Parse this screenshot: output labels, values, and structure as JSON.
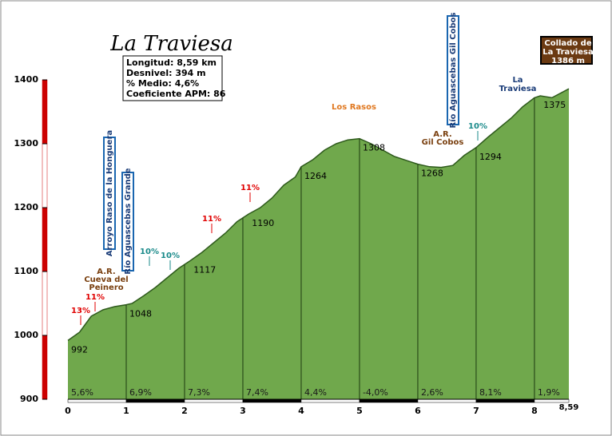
{
  "title": "La Traviesa",
  "info": [
    "Longitud: 8,59 km",
    "Desnivel: 394 m",
    "% Medio: 4,6%",
    "Coeficiente APM: 86"
  ],
  "chart_data": {
    "type": "area",
    "x": [
      0,
      0.2,
      0.4,
      0.6,
      0.8,
      1.0,
      1.1,
      1.3,
      1.5,
      1.7,
      1.9,
      2.1,
      2.3,
      2.5,
      2.7,
      2.9,
      3.1,
      3.3,
      3.5,
      3.7,
      3.9,
      4.0,
      4.2,
      4.4,
      4.6,
      4.8,
      5.0,
      5.2,
      5.4,
      5.6,
      5.8,
      6.0,
      6.2,
      6.4,
      6.6,
      6.8,
      7.0,
      7.2,
      7.4,
      7.6,
      7.8,
      8.0,
      8.1,
      8.3,
      8.59
    ],
    "values": [
      992,
      1005,
      1030,
      1040,
      1045,
      1048,
      1050,
      1062,
      1075,
      1090,
      1105,
      1117,
      1130,
      1145,
      1160,
      1178,
      1190,
      1200,
      1215,
      1235,
      1248,
      1264,
      1275,
      1290,
      1300,
      1306,
      1308,
      1300,
      1290,
      1280,
      1274,
      1268,
      1264,
      1263,
      1266,
      1282,
      1294,
      1310,
      1325,
      1340,
      1358,
      1372,
      1375,
      1372,
      1386
    ],
    "color": "#70a84c",
    "xlim": [
      0,
      8.59
    ],
    "ylim": [
      900,
      1400
    ],
    "xticks": [
      0,
      1,
      2,
      3,
      4,
      5,
      6,
      7,
      8,
      {
        "value": 8.59,
        "label": "8,59"
      }
    ],
    "yticks": [
      900,
      1000,
      1100,
      1200,
      1300,
      1400
    ],
    "point_labels": {
      "x": [
        0,
        1.0,
        2.1,
        3.1,
        4.0,
        5.0,
        6.0,
        7.0,
        8.1
      ],
      "values": [
        992,
        1048,
        1117,
        1190,
        1264,
        1308,
        1268,
        1294,
        1375
      ]
    },
    "gradient_labels": [
      "5,6%",
      "6,9%",
      "7,3%",
      "7,4%",
      "4,4%",
      "-4,0%",
      "2,6%",
      "8,1%",
      "1,9%"
    ],
    "annotations": [
      {
        "lines": [
          "Collado de",
          "La Traviesa",
          "1386 m"
        ]
      },
      {
        "lines": [
          "Los Rasos"
        ]
      },
      {
        "lines": [
          "Río Aguascebas Gil Cobos"
        ]
      },
      {
        "lines": [
          "Arroyo Raso de la Honguera"
        ]
      },
      {
        "lines": [
          "Río Aguascebas Grande"
        ]
      },
      {
        "lines": [
          "A.R.",
          "Cueva del",
          "Peinero"
        ]
      },
      {
        "lines": [
          "A.R.",
          "Gil Cobos"
        ]
      },
      {
        "lines": [
          "La",
          "Traviesa"
        ]
      },
      {
        "lines": [
          "13%"
        ]
      },
      {
        "lines": [
          "11%"
        ]
      },
      {
        "lines": [
          "10%"
        ]
      },
      {
        "lines": [
          "10%"
        ]
      },
      {
        "lines": [
          "11%"
        ]
      },
      {
        "lines": [
          "11%"
        ]
      },
      {
        "lines": [
          "10%"
        ]
      }
    ]
  }
}
